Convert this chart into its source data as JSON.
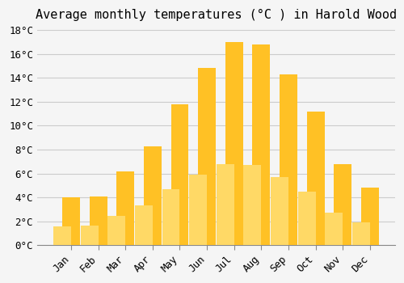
{
  "title": "Average monthly temperatures (°C ) in Harold Wood",
  "months": [
    "Jan",
    "Feb",
    "Mar",
    "Apr",
    "May",
    "Jun",
    "Jul",
    "Aug",
    "Sep",
    "Oct",
    "Nov",
    "Dec"
  ],
  "values": [
    4.0,
    4.1,
    6.2,
    8.3,
    11.8,
    14.8,
    17.0,
    16.8,
    14.3,
    11.2,
    6.8,
    4.8
  ],
  "bar_color_top": "#FFC125",
  "bar_color_bottom": "#FFD966",
  "bar_edge_color": "none",
  "background_color": "#F5F5F5",
  "grid_color": "#CCCCCC",
  "title_fontsize": 11,
  "tick_fontsize": 9,
  "ylim": [
    0,
    18
  ],
  "yticks": [
    0,
    2,
    4,
    6,
    8,
    10,
    12,
    14,
    16,
    18
  ]
}
